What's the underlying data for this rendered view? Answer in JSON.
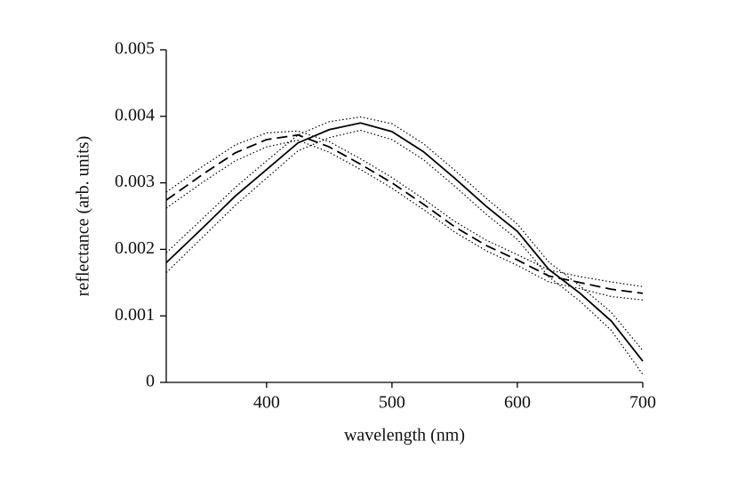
{
  "chart_data": {
    "type": "line",
    "x_label": "wavelength (nm)",
    "y_label": "reflectance (arb. units)",
    "x": [
      320,
      350,
      375,
      400,
      425,
      450,
      475,
      500,
      525,
      550,
      575,
      600,
      625,
      650,
      675,
      700
    ],
    "series": [
      {
        "color": "#000000",
        "style": "solid",
        "values": [
          0.0018,
          0.00234,
          0.0028,
          0.0032,
          0.0036,
          0.0038,
          0.0039,
          0.00377,
          0.00347,
          0.00307,
          0.00265,
          0.00227,
          0.0017,
          0.00134,
          0.00092,
          0.00032
        ]
      },
      {
        "color": "#000000",
        "style": "dotted",
        "values": [
          0.00195,
          0.00248,
          0.00293,
          0.00333,
          0.00372,
          0.00392,
          0.00399,
          0.00389,
          0.00359,
          0.00319,
          0.00277,
          0.00238,
          0.00181,
          0.00145,
          0.00105,
          0.00048
        ]
      },
      {
        "color": "#000000",
        "style": "dotted",
        "values": [
          0.00165,
          0.0022,
          0.00266,
          0.00307,
          0.00348,
          0.00368,
          0.00379,
          0.00365,
          0.00335,
          0.00295,
          0.00253,
          0.00215,
          0.00159,
          0.00122,
          0.00078,
          0.00012
        ]
      },
      {
        "color": "#000000",
        "style": "dashed",
        "values": [
          0.00274,
          0.00314,
          0.00345,
          0.00365,
          0.00372,
          0.00354,
          0.00328,
          0.003,
          0.00268,
          0.00234,
          0.00206,
          0.00184,
          0.0016,
          0.0015,
          0.0014,
          0.00134
        ]
      },
      {
        "color": "#000000",
        "style": "dotted",
        "values": [
          0.00286,
          0.00326,
          0.00357,
          0.00375,
          0.00378,
          0.00362,
          0.00336,
          0.00308,
          0.00276,
          0.00242,
          0.00214,
          0.00192,
          0.00169,
          0.00159,
          0.00151,
          0.00144
        ]
      },
      {
        "color": "#000000",
        "style": "dotted",
        "values": [
          0.00262,
          0.00302,
          0.00333,
          0.00354,
          0.00364,
          0.00346,
          0.0032,
          0.00292,
          0.0026,
          0.00226,
          0.00198,
          0.00176,
          0.00151,
          0.00141,
          0.00129,
          0.00124
        ]
      }
    ],
    "xlim": [
      320,
      700
    ],
    "xticks": [
      400,
      500,
      600,
      700
    ],
    "ylim": [
      0,
      0.005
    ],
    "yticks": [
      0,
      0.001,
      0.002,
      0.003,
      0.004,
      0.005
    ]
  }
}
